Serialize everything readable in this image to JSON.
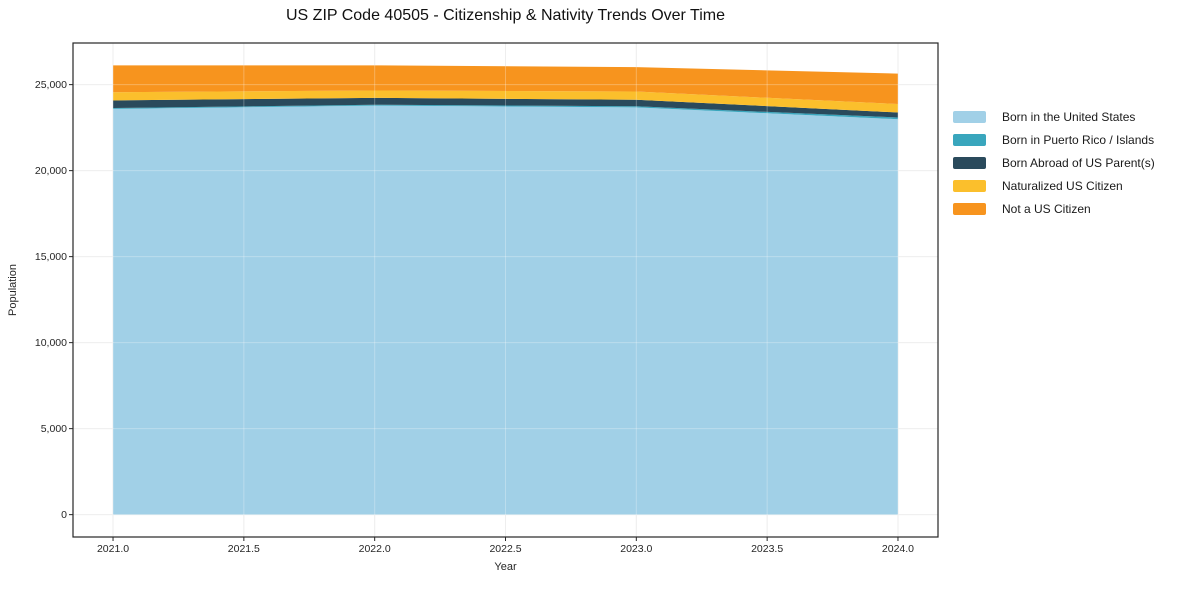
{
  "title": "US ZIP Code 40505 - Citizenship & Nativity Trends Over Time",
  "colors": {
    "grid": "#e8e8e8",
    "spine": "#262626",
    "tick_text": "#262626",
    "title_text": "#111111"
  },
  "chart_data": {
    "type": "area",
    "stacked": true,
    "title": "US ZIP Code 40505 - Citizenship & Nativity Trends Over Time",
    "xlabel": "Year",
    "ylabel": "Population",
    "x": [
      2021,
      2022,
      2023,
      2024
    ],
    "series": [
      {
        "name": "Born in the United States",
        "color": "#a1d0e7",
        "values": [
          23590,
          23780,
          23680,
          22990
        ]
      },
      {
        "name": "Born in Puerto Rico / Islands",
        "color": "#39a6bd",
        "values": [
          50,
          50,
          60,
          100
        ]
      },
      {
        "name": "Born Abroad of US Parent(s)",
        "color": "#2a4a5c",
        "values": [
          440,
          400,
          380,
          290
        ]
      },
      {
        "name": "Naturalized US Citizen",
        "color": "#fbbf2c",
        "values": [
          480,
          430,
          480,
          490
        ]
      },
      {
        "name": "Not a US Citizen",
        "color": "#f7941e",
        "values": [
          1560,
          1460,
          1420,
          1770
        ]
      }
    ],
    "totals": [
      26120,
      26120,
      26020,
      25640
    ],
    "xlim": [
      2020.847,
      2024.153
    ],
    "ylim": [
      -1300,
      27420
    ],
    "xticks": [
      2021.0,
      2021.5,
      2022.0,
      2022.5,
      2023.0,
      2023.5,
      2024.0
    ],
    "xtick_labels": [
      "2021.0",
      "2021.5",
      "2022.0",
      "2022.5",
      "2023.0",
      "2023.5",
      "2024.0"
    ],
    "yticks": [
      0,
      5000,
      10000,
      15000,
      20000,
      25000
    ],
    "ytick_labels": [
      "0",
      "5,000",
      "10,000",
      "15,000",
      "20,000",
      "25,000"
    ],
    "grid": true,
    "legend_position": "right-outside"
  }
}
